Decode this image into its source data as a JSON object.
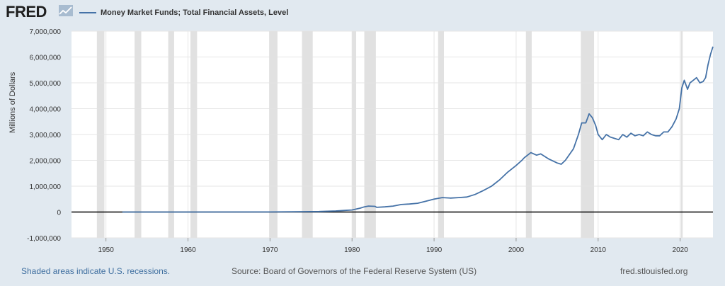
{
  "header": {
    "logo_text": "FRED",
    "logo_icon": "chart-line-icon",
    "legend_label": "Money Market Funds; Total Financial Assets, Level",
    "series_color": "#4572a7"
  },
  "footer": {
    "recession_note": "Shaded areas indicate U.S. recessions.",
    "source": "Source: Board of Governors of the Federal Reserve System (US)",
    "site": "fred.stlouisfed.org"
  },
  "chart_data": {
    "type": "line",
    "title": "",
    "xlabel": "",
    "ylabel": "Millions of Dollars",
    "xlim": [
      1945.8,
      2024.0
    ],
    "ylim": [
      -1000000,
      7000000
    ],
    "x_ticks": [
      1950,
      1960,
      1970,
      1980,
      1990,
      2000,
      2010,
      2020
    ],
    "y_ticks": [
      -1000000,
      0,
      1000000,
      2000000,
      3000000,
      4000000,
      5000000,
      6000000,
      7000000
    ],
    "y_tick_labels": [
      "-1,000,000",
      "0",
      "1,000,000",
      "2,000,000",
      "3,000,000",
      "4,000,000",
      "5,000,000",
      "6,000,000",
      "7,000,000"
    ],
    "grid": true,
    "zero_line": true,
    "recessions": [
      [
        1948.9,
        1949.8
      ],
      [
        1953.5,
        1954.3
      ],
      [
        1957.6,
        1958.3
      ],
      [
        1960.3,
        1961.1
      ],
      [
        1969.9,
        1970.9
      ],
      [
        1973.9,
        1975.2
      ],
      [
        1980.0,
        1980.5
      ],
      [
        1981.5,
        1982.9
      ],
      [
        1990.5,
        1991.2
      ],
      [
        2001.2,
        2001.9
      ],
      [
        2007.9,
        2009.5
      ],
      [
        2020.1,
        2020.3
      ]
    ],
    "recession_color": "#e1e1e1",
    "series": [
      {
        "color": "#4572a7",
        "x": [
          1952,
          1960,
          1970,
          1974,
          1976,
          1978,
          1979,
          1980,
          1981,
          1981.5,
          1982,
          1982.8,
          1983,
          1984,
          1985,
          1986,
          1987,
          1988,
          1989,
          1990,
          1991,
          1992,
          1993,
          1994,
          1995,
          1996,
          1997,
          1998,
          1999,
          2000,
          2000.7,
          2001,
          2001.8,
          2002.5,
          2003,
          2004,
          2005,
          2005.5,
          2006,
          2007,
          2007.6,
          2008,
          2008.5,
          2008.9,
          2009.3,
          2009.7,
          2010,
          2010.5,
          2011,
          2011.5,
          2012,
          2012.5,
          2013,
          2013.5,
          2014,
          2014.5,
          2015,
          2015.5,
          2016,
          2016.5,
          2017,
          2017.5,
          2018,
          2018.5,
          2019,
          2019.5,
          2019.9,
          2020.2,
          2020.5,
          2020.9,
          2021.2,
          2021.6,
          2022,
          2022.4,
          2022.8,
          2023.1,
          2023.4,
          2023.7,
          2024.0
        ],
        "y": [
          0,
          0,
          3000,
          15000,
          20000,
          40000,
          60000,
          80000,
          150000,
          200000,
          230000,
          220000,
          180000,
          200000,
          230000,
          290000,
          310000,
          340000,
          420000,
          500000,
          560000,
          540000,
          560000,
          580000,
          680000,
          830000,
          1000000,
          1250000,
          1550000,
          1800000,
          2000000,
          2100000,
          2300000,
          2200000,
          2250000,
          2050000,
          1900000,
          1850000,
          2000000,
          2450000,
          3000000,
          3450000,
          3450000,
          3800000,
          3650000,
          3350000,
          3000000,
          2800000,
          3000000,
          2900000,
          2850000,
          2800000,
          3000000,
          2900000,
          3050000,
          2950000,
          3000000,
          2950000,
          3100000,
          3000000,
          2950000,
          2950000,
          3100000,
          3100000,
          3300000,
          3600000,
          4000000,
          4800000,
          5100000,
          4750000,
          5000000,
          5100000,
          5200000,
          5000000,
          5050000,
          5200000,
          5700000,
          6100000,
          6400000
        ]
      }
    ]
  }
}
